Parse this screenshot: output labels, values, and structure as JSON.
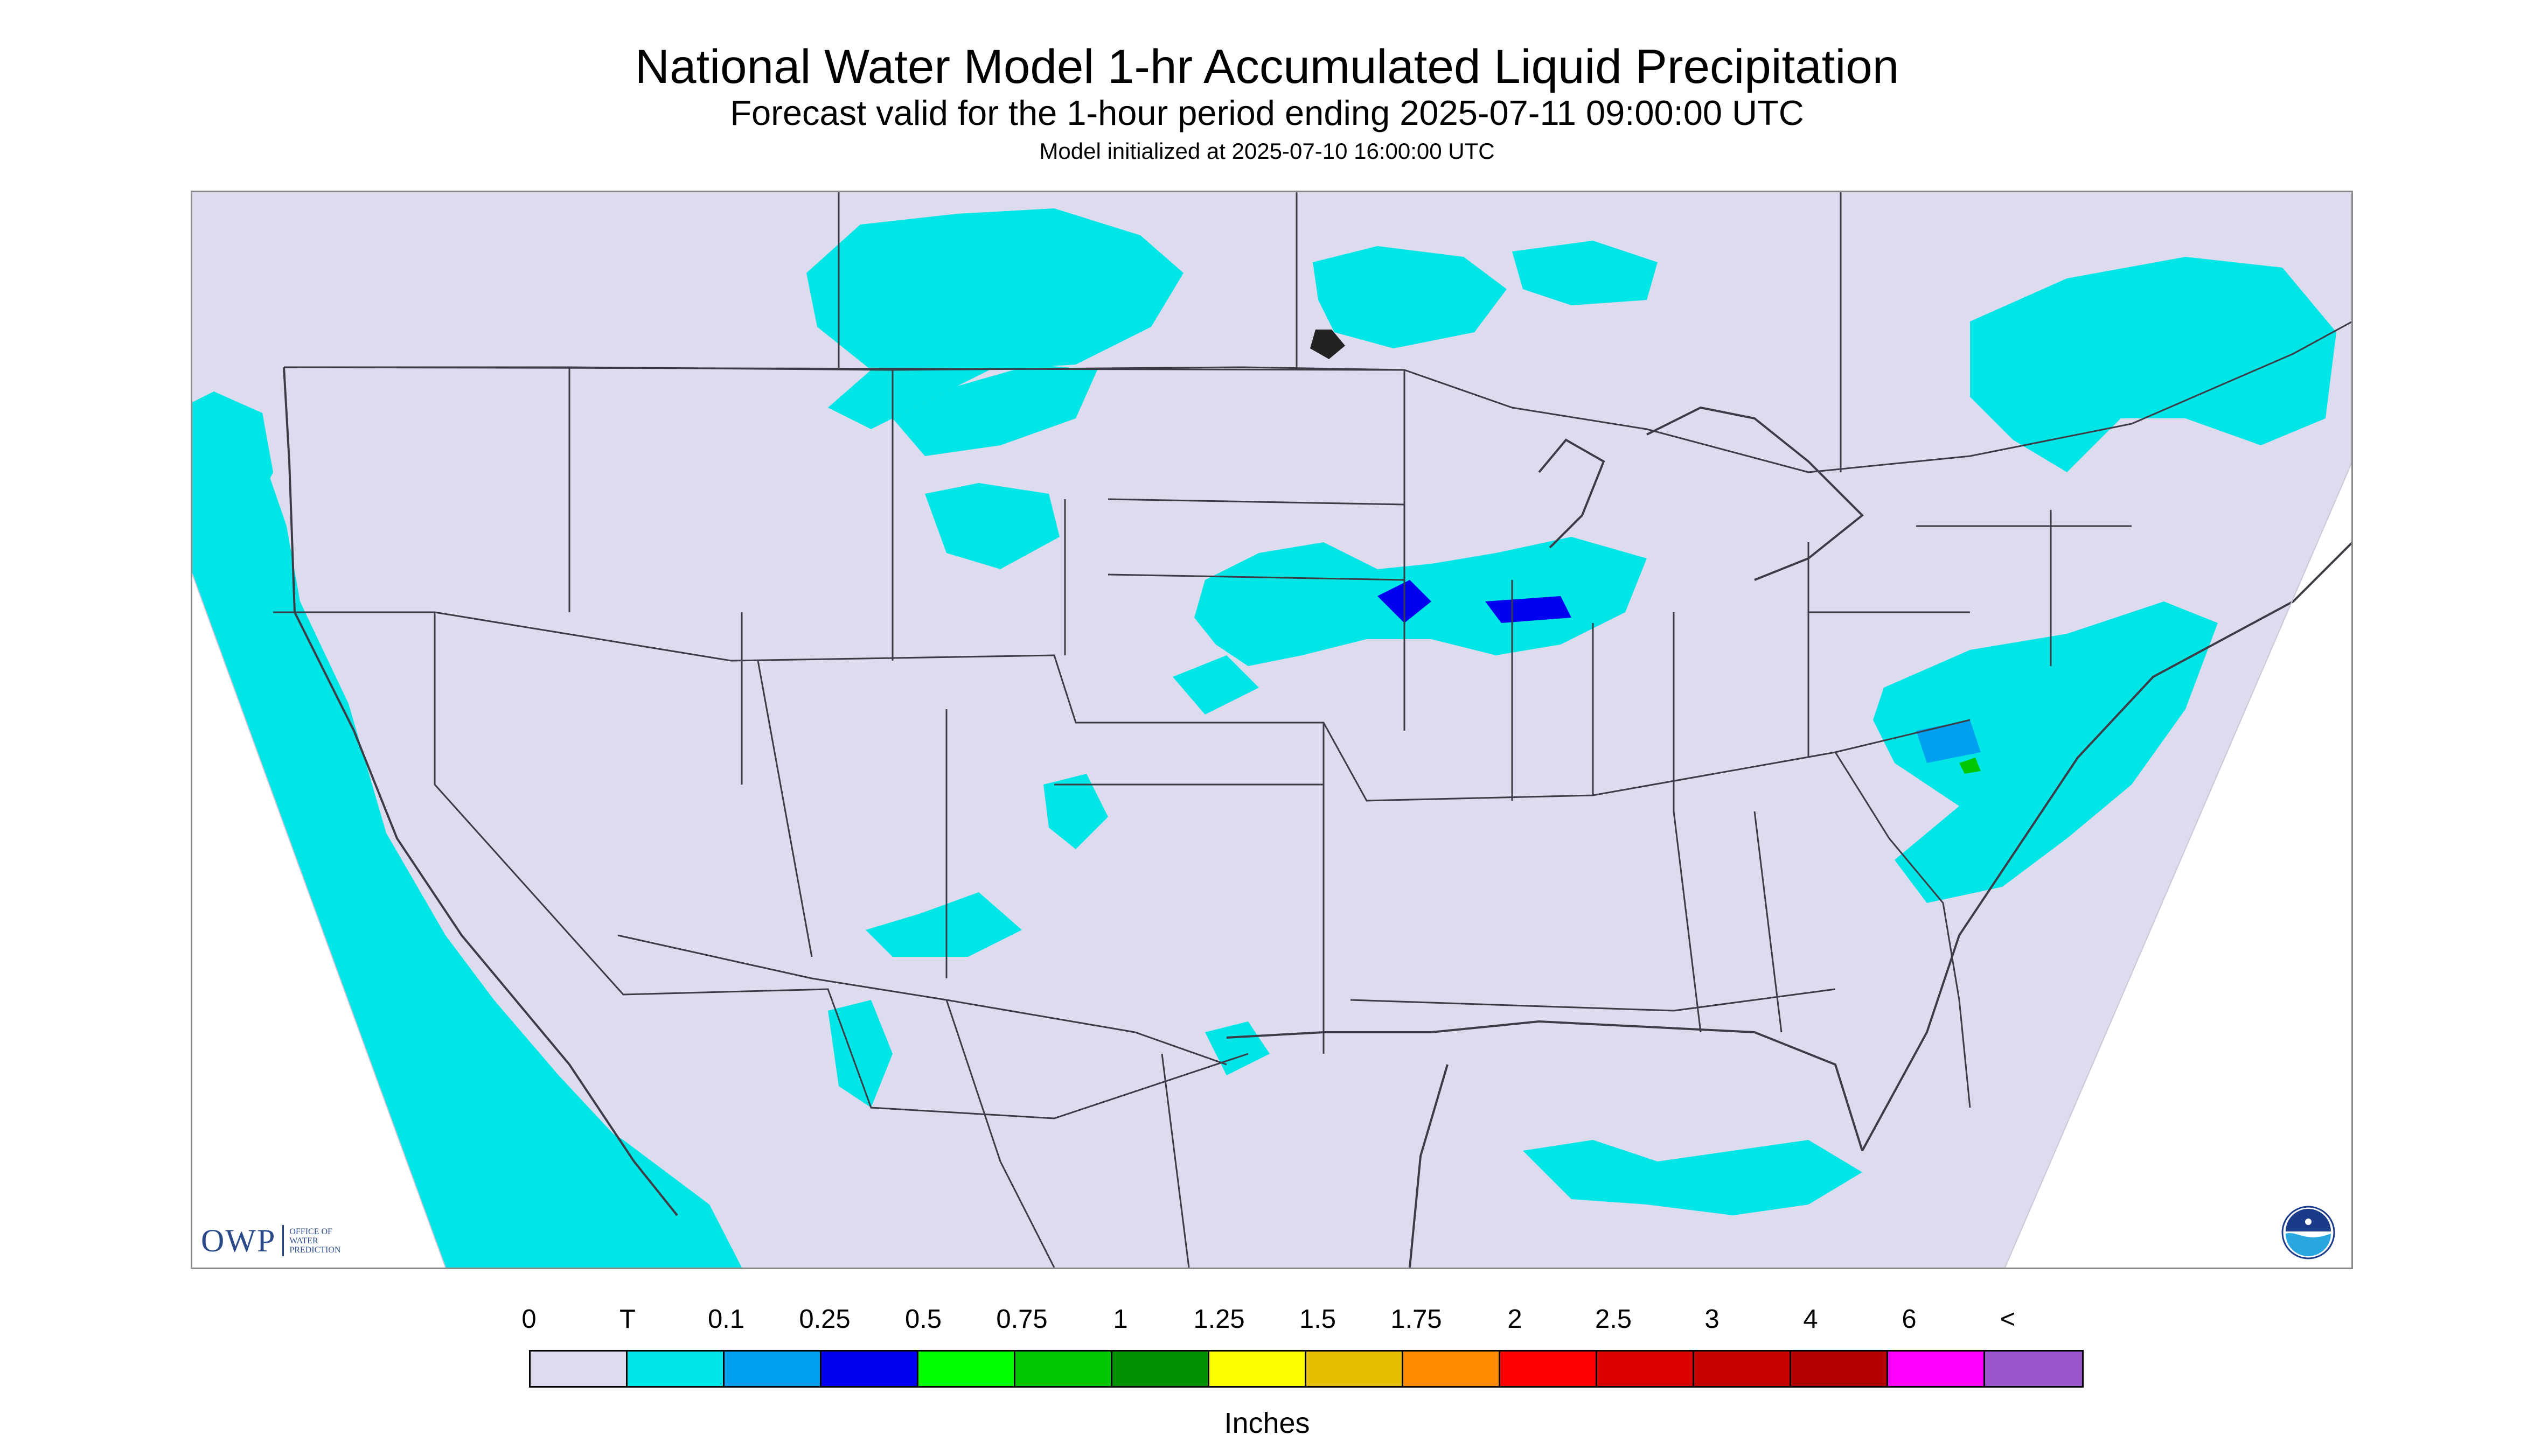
{
  "title": "National Water Model 1-hr Accumulated Liquid Precipitation",
  "subtitle": "Forecast valid for the 1-hour period ending 2025-07-11 09:00:00 UTC",
  "init_line": "Model initialized at 2025-07-10 16:00:00 UTC",
  "colors": {
    "land": "#dcdcee",
    "trace": "#00e5e5",
    "border": "#3c3c46",
    "frame": "#8a8a8a"
  },
  "logos": {
    "owp": {
      "letters": "OWP",
      "line1": "OFFICE OF",
      "line2": "WATER",
      "line3": "PREDICTION"
    },
    "noaa": {
      "name": "noaa-emblem-icon"
    }
  },
  "legend": {
    "units": "Inches",
    "ticks": [
      "0",
      "T",
      "0.1",
      "0.25",
      "0.5",
      "0.75",
      "1",
      "1.25",
      "1.5",
      "1.75",
      "2",
      "2.5",
      "3",
      "4",
      "6",
      "<"
    ],
    "colors": [
      "#dcdcee",
      "#00e5e5",
      "#00a0f0",
      "#0000f0",
      "#00ff00",
      "#00c800",
      "#009000",
      "#ffff00",
      "#e6c000",
      "#ff8c00",
      "#ff0000",
      "#dc0000",
      "#c80000",
      "#b40000",
      "#ff00ff",
      "#9955cc"
    ]
  }
}
